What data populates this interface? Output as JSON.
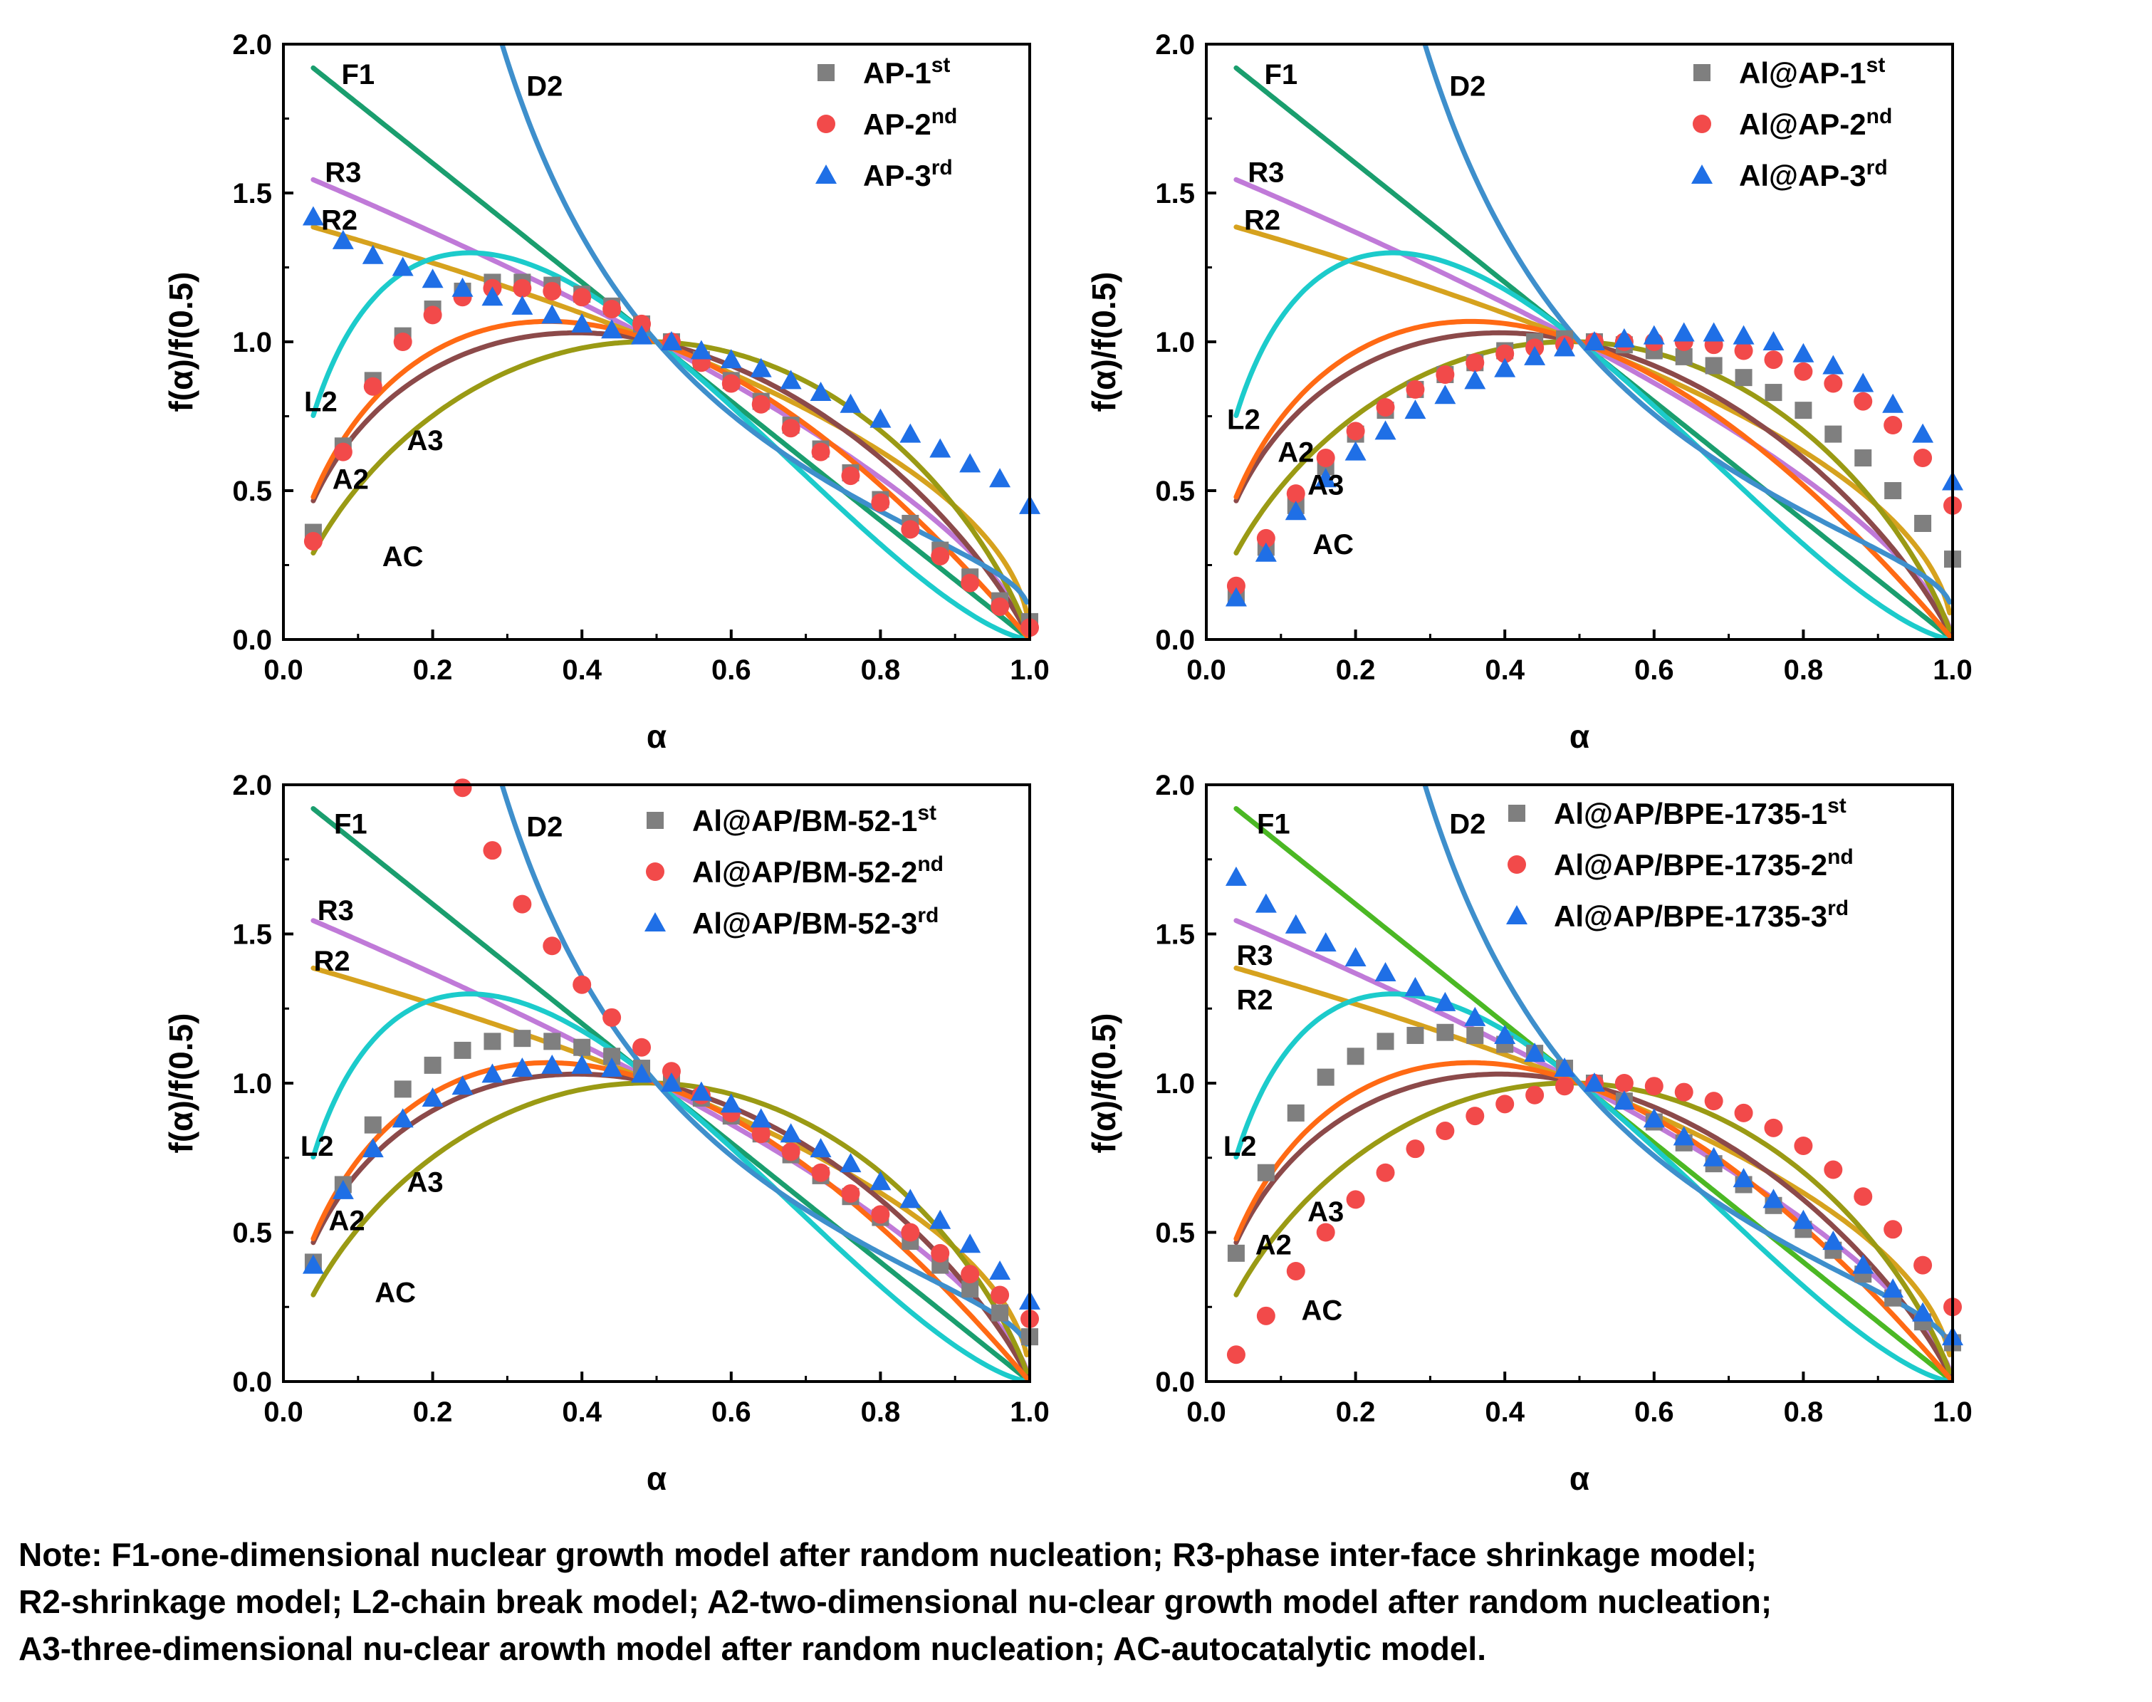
{
  "note": {
    "line1": "Note: F1-one-dimensional nuclear growth model after random nucleation; R3-phase inter-face shrinkage model;",
    "line2": "R2-shrinkage model; L2-chain break model; A2-two-dimensional nu-clear growth model after random nucleation;",
    "line3": "A3-three-dimensional nu-clear arowth model after random nucleation; AC-autocatalytic model."
  },
  "colors": {
    "F1": "#1a9e6e",
    "F1_alt": "#4bb824",
    "D2": "#3e8fcc",
    "R3": "#c07ad8",
    "R2": "#d6a21e",
    "L2": "#1ccbcb",
    "A2": "#8c4a4a",
    "A3": "#9a9a14",
    "AC": "#ff6a14",
    "series1": "#7f7f7f",
    "series2": "#f24a4a",
    "series3": "#1f6fe6"
  },
  "chart_data": [
    {
      "type": "scatter",
      "xlabel": "α",
      "ylabel": "f(α)/f(0.5)",
      "xlim": [
        0,
        1
      ],
      "ylim": [
        0,
        2
      ],
      "xticks": [
        "0.0",
        "0.2",
        "0.4",
        "0.6",
        "0.8",
        "1.0"
      ],
      "yticks": [
        "0.0",
        "0.5",
        "1.0",
        "1.5",
        "2.0"
      ],
      "legend_position": "top-right",
      "model_labels": [
        {
          "text": "F1",
          "x": 0.1,
          "y": 1.9
        },
        {
          "text": "D2",
          "x": 0.35,
          "y": 1.86
        },
        {
          "text": "R3",
          "x": 0.08,
          "y": 1.57
        },
        {
          "text": "R2",
          "x": 0.075,
          "y": 1.41
        },
        {
          "text": "L2",
          "x": 0.05,
          "y": 0.8
        },
        {
          "text": "A3",
          "x": 0.19,
          "y": 0.67
        },
        {
          "text": "A2",
          "x": 0.09,
          "y": 0.54
        },
        {
          "text": "AC",
          "x": 0.16,
          "y": 0.28
        }
      ],
      "series": [
        {
          "name": "AP-1",
          "sup": "st",
          "marker": "square",
          "x": [
            0.04,
            0.08,
            0.12,
            0.16,
            0.2,
            0.24,
            0.28,
            0.32,
            0.36,
            0.4,
            0.44,
            0.48,
            0.52,
            0.56,
            0.6,
            0.64,
            0.68,
            0.72,
            0.76,
            0.8,
            0.84,
            0.88,
            0.92,
            0.96,
            1.0
          ],
          "y": [
            0.36,
            0.65,
            0.87,
            1.02,
            1.11,
            1.17,
            1.2,
            1.2,
            1.19,
            1.16,
            1.12,
            1.06,
            1.0,
            0.94,
            0.87,
            0.8,
            0.72,
            0.64,
            0.56,
            0.47,
            0.39,
            0.3,
            0.21,
            0.13,
            0.06
          ]
        },
        {
          "name": "AP-2",
          "sup": "nd",
          "marker": "circle",
          "x": [
            0.04,
            0.08,
            0.12,
            0.16,
            0.2,
            0.24,
            0.28,
            0.32,
            0.36,
            0.4,
            0.44,
            0.48,
            0.52,
            0.56,
            0.6,
            0.64,
            0.68,
            0.72,
            0.76,
            0.8,
            0.84,
            0.88,
            0.92,
            0.96,
            1.0
          ],
          "y": [
            0.33,
            0.63,
            0.85,
            1.0,
            1.09,
            1.15,
            1.18,
            1.18,
            1.17,
            1.15,
            1.11,
            1.06,
            1.0,
            0.93,
            0.86,
            0.79,
            0.71,
            0.63,
            0.55,
            0.46,
            0.37,
            0.28,
            0.19,
            0.11,
            0.04
          ]
        },
        {
          "name": "AP-3",
          "sup": "rd",
          "marker": "triangle",
          "x": [
            0.04,
            0.08,
            0.12,
            0.16,
            0.2,
            0.24,
            0.28,
            0.32,
            0.36,
            0.4,
            0.44,
            0.48,
            0.52,
            0.56,
            0.6,
            0.64,
            0.68,
            0.72,
            0.76,
            0.8,
            0.84,
            0.88,
            0.92,
            0.96,
            1.0
          ],
          "y": [
            1.42,
            1.34,
            1.29,
            1.25,
            1.21,
            1.18,
            1.15,
            1.12,
            1.09,
            1.06,
            1.04,
            1.02,
            1.0,
            0.97,
            0.94,
            0.91,
            0.87,
            0.83,
            0.79,
            0.74,
            0.69,
            0.64,
            0.59,
            0.54,
            0.45
          ]
        }
      ]
    },
    {
      "type": "scatter",
      "xlabel": "α",
      "ylabel": "f(α)/f(0.5)",
      "xlim": [
        0,
        1
      ],
      "ylim": [
        0,
        2
      ],
      "xticks": [
        "0.0",
        "0.2",
        "0.4",
        "0.6",
        "0.8",
        "1.0"
      ],
      "yticks": [
        "0.0",
        "0.5",
        "1.0",
        "1.5",
        "2.0"
      ],
      "legend_position": "top-right",
      "model_labels": [
        {
          "text": "F1",
          "x": 0.1,
          "y": 1.9
        },
        {
          "text": "D2",
          "x": 0.35,
          "y": 1.86
        },
        {
          "text": "R3",
          "x": 0.08,
          "y": 1.57
        },
        {
          "text": "R2",
          "x": 0.075,
          "y": 1.41
        },
        {
          "text": "L2",
          "x": 0.05,
          "y": 0.74
        },
        {
          "text": "A2",
          "x": 0.12,
          "y": 0.63
        },
        {
          "text": "A3",
          "x": 0.16,
          "y": 0.52
        },
        {
          "text": "AC",
          "x": 0.17,
          "y": 0.32
        }
      ],
      "series": [
        {
          "name": "Al@AP-1",
          "sup": "st",
          "marker": "square",
          "x": [
            0.04,
            0.08,
            0.12,
            0.16,
            0.2,
            0.24,
            0.28,
            0.32,
            0.36,
            0.4,
            0.44,
            0.48,
            0.52,
            0.56,
            0.6,
            0.64,
            0.68,
            0.72,
            0.76,
            0.8,
            0.84,
            0.88,
            0.92,
            0.96,
            1.0
          ],
          "y": [
            0.15,
            0.31,
            0.45,
            0.58,
            0.69,
            0.77,
            0.84,
            0.89,
            0.93,
            0.97,
            1.0,
            1.01,
            1.0,
            0.99,
            0.97,
            0.95,
            0.92,
            0.88,
            0.83,
            0.77,
            0.69,
            0.61,
            0.5,
            0.39,
            0.27
          ]
        },
        {
          "name": "Al@AP-2",
          "sup": "nd",
          "marker": "circle",
          "x": [
            0.04,
            0.08,
            0.12,
            0.16,
            0.2,
            0.24,
            0.28,
            0.32,
            0.36,
            0.4,
            0.44,
            0.48,
            0.52,
            0.56,
            0.6,
            0.64,
            0.68,
            0.72,
            0.76,
            0.8,
            0.84,
            0.88,
            0.92,
            0.96,
            1.0
          ],
          "y": [
            0.18,
            0.34,
            0.49,
            0.61,
            0.7,
            0.78,
            0.84,
            0.89,
            0.93,
            0.96,
            0.98,
            0.99,
            1.0,
            1.0,
            1.0,
            1.0,
            0.99,
            0.97,
            0.94,
            0.9,
            0.86,
            0.8,
            0.72,
            0.61,
            0.45
          ]
        },
        {
          "name": "Al@AP-3",
          "sup": "rd",
          "marker": "triangle",
          "x": [
            0.04,
            0.08,
            0.12,
            0.16,
            0.2,
            0.24,
            0.28,
            0.32,
            0.36,
            0.4,
            0.44,
            0.48,
            0.52,
            0.56,
            0.6,
            0.64,
            0.68,
            0.72,
            0.76,
            0.8,
            0.84,
            0.88,
            0.92,
            0.96,
            1.0
          ],
          "y": [
            0.14,
            0.29,
            0.43,
            0.54,
            0.63,
            0.7,
            0.77,
            0.82,
            0.87,
            0.91,
            0.95,
            0.98,
            1.0,
            1.01,
            1.02,
            1.03,
            1.03,
            1.02,
            1.0,
            0.96,
            0.92,
            0.86,
            0.79,
            0.69,
            0.53
          ]
        }
      ]
    },
    {
      "type": "scatter",
      "xlabel": "α",
      "ylabel": "f(α)/f(0.5)",
      "xlim": [
        0,
        1
      ],
      "ylim": [
        0,
        2
      ],
      "xticks": [
        "0.0",
        "0.2",
        "0.4",
        "0.6",
        "0.8",
        "1.0"
      ],
      "yticks": [
        "0.0",
        "0.5",
        "1.0",
        "1.5",
        "2.0"
      ],
      "legend_position": "top-right",
      "model_labels": [
        {
          "text": "F1",
          "x": 0.09,
          "y": 1.87
        },
        {
          "text": "D2",
          "x": 0.35,
          "y": 1.86
        },
        {
          "text": "R3",
          "x": 0.07,
          "y": 1.58
        },
        {
          "text": "R2",
          "x": 0.065,
          "y": 1.41
        },
        {
          "text": "L2",
          "x": 0.045,
          "y": 0.79
        },
        {
          "text": "A3",
          "x": 0.19,
          "y": 0.67
        },
        {
          "text": "A2",
          "x": 0.085,
          "y": 0.54
        },
        {
          "text": "AC",
          "x": 0.15,
          "y": 0.3
        }
      ],
      "series": [
        {
          "name": "Al@AP/BM-52-1",
          "sup": "st",
          "marker": "square",
          "x": [
            0.04,
            0.08,
            0.12,
            0.16,
            0.2,
            0.24,
            0.28,
            0.32,
            0.36,
            0.4,
            0.44,
            0.48,
            0.52,
            0.56,
            0.6,
            0.64,
            0.68,
            0.72,
            0.76,
            0.8,
            0.84,
            0.88,
            0.92,
            0.96,
            1.0
          ],
          "y": [
            0.4,
            0.66,
            0.86,
            0.98,
            1.06,
            1.11,
            1.14,
            1.15,
            1.14,
            1.12,
            1.09,
            1.05,
            1.0,
            0.95,
            0.89,
            0.83,
            0.76,
            0.69,
            0.62,
            0.55,
            0.47,
            0.39,
            0.31,
            0.23,
            0.15
          ]
        },
        {
          "name": "Al@AP/BM-52-2",
          "sup": "nd",
          "marker": "circle",
          "x": [
            0.24,
            0.28,
            0.32,
            0.36,
            0.4,
            0.44,
            0.48,
            0.52,
            0.56,
            0.6,
            0.64,
            0.68,
            0.72,
            0.76,
            0.8,
            0.84,
            0.88,
            0.92,
            0.96,
            1.0
          ],
          "y": [
            1.99,
            1.78,
            1.6,
            1.46,
            1.33,
            1.22,
            1.12,
            1.04,
            0.96,
            0.9,
            0.83,
            0.77,
            0.7,
            0.63,
            0.56,
            0.5,
            0.43,
            0.36,
            0.29,
            0.21
          ]
        },
        {
          "name": "Al@AP/BM-52-3",
          "sup": "rd",
          "marker": "triangle",
          "x": [
            0.04,
            0.08,
            0.12,
            0.16,
            0.2,
            0.24,
            0.28,
            0.32,
            0.36,
            0.4,
            0.44,
            0.48,
            0.52,
            0.56,
            0.6,
            0.64,
            0.68,
            0.72,
            0.76,
            0.8,
            0.84,
            0.88,
            0.92,
            0.96,
            1.0
          ],
          "y": [
            0.39,
            0.64,
            0.78,
            0.88,
            0.95,
            0.99,
            1.03,
            1.05,
            1.06,
            1.06,
            1.05,
            1.03,
            1.0,
            0.97,
            0.93,
            0.88,
            0.83,
            0.78,
            0.73,
            0.67,
            0.61,
            0.54,
            0.46,
            0.37,
            0.27
          ]
        }
      ]
    },
    {
      "type": "scatter",
      "xlabel": "α",
      "ylabel": "f(α)/f(0.5)",
      "xlim": [
        0,
        1
      ],
      "ylim": [
        0,
        2
      ],
      "xticks": [
        "0.0",
        "0.2",
        "0.4",
        "0.6",
        "0.8",
        "1.0"
      ],
      "yticks": [
        "0.0",
        "0.5",
        "1.0",
        "1.5",
        "2.0"
      ],
      "legend_position": "top-right",
      "model_labels": [
        {
          "text": "F1",
          "x": 0.09,
          "y": 1.87
        },
        {
          "text": "D2",
          "x": 0.35,
          "y": 1.87
        },
        {
          "text": "R3",
          "x": 0.065,
          "y": 1.43
        },
        {
          "text": "R2",
          "x": 0.065,
          "y": 1.28
        },
        {
          "text": "L2",
          "x": 0.045,
          "y": 0.79
        },
        {
          "text": "A3",
          "x": 0.16,
          "y": 0.57
        },
        {
          "text": "A2",
          "x": 0.09,
          "y": 0.46
        },
        {
          "text": "AC",
          "x": 0.155,
          "y": 0.24
        }
      ],
      "series": [
        {
          "name": "Al@AP/BPE-1735-1",
          "sup": "st",
          "marker": "square",
          "x": [
            0.04,
            0.08,
            0.12,
            0.16,
            0.2,
            0.24,
            0.28,
            0.32,
            0.36,
            0.4,
            0.44,
            0.48,
            0.52,
            0.56,
            0.6,
            0.64,
            0.68,
            0.72,
            0.76,
            0.8,
            0.84,
            0.88,
            0.92,
            0.96,
            1.0
          ],
          "y": [
            0.43,
            0.7,
            0.9,
            1.02,
            1.09,
            1.14,
            1.16,
            1.17,
            1.16,
            1.13,
            1.1,
            1.05,
            1.0,
            0.94,
            0.87,
            0.8,
            0.73,
            0.66,
            0.59,
            0.51,
            0.44,
            0.36,
            0.28,
            0.2,
            0.13
          ]
        },
        {
          "name": "Al@AP/BPE-1735-2",
          "sup": "nd",
          "marker": "circle",
          "x": [
            0.04,
            0.08,
            0.12,
            0.16,
            0.2,
            0.24,
            0.28,
            0.32,
            0.36,
            0.4,
            0.44,
            0.48,
            0.52,
            0.56,
            0.6,
            0.64,
            0.68,
            0.72,
            0.76,
            0.8,
            0.84,
            0.88,
            0.92,
            0.96,
            1.0
          ],
          "y": [
            0.09,
            0.22,
            0.37,
            0.5,
            0.61,
            0.7,
            0.78,
            0.84,
            0.89,
            0.93,
            0.96,
            0.99,
            1.0,
            1.0,
            0.99,
            0.97,
            0.94,
            0.9,
            0.85,
            0.79,
            0.71,
            0.62,
            0.51,
            0.39,
            0.25
          ]
        },
        {
          "name": "Al@AP/BPE-1735-3",
          "sup": "rd",
          "marker": "triangle",
          "x": [
            0.04,
            0.08,
            0.12,
            0.16,
            0.2,
            0.24,
            0.28,
            0.32,
            0.36,
            0.4,
            0.44,
            0.48,
            0.52,
            0.56,
            0.6,
            0.64,
            0.68,
            0.72,
            0.76,
            0.8,
            0.84,
            0.88,
            0.92,
            0.96,
            1.0
          ],
          "y": [
            1.69,
            1.6,
            1.53,
            1.47,
            1.42,
            1.37,
            1.32,
            1.27,
            1.22,
            1.16,
            1.1,
            1.05,
            1.0,
            0.94,
            0.88,
            0.82,
            0.75,
            0.68,
            0.61,
            0.54,
            0.47,
            0.39,
            0.31,
            0.23,
            0.15
          ]
        }
      ]
    }
  ]
}
